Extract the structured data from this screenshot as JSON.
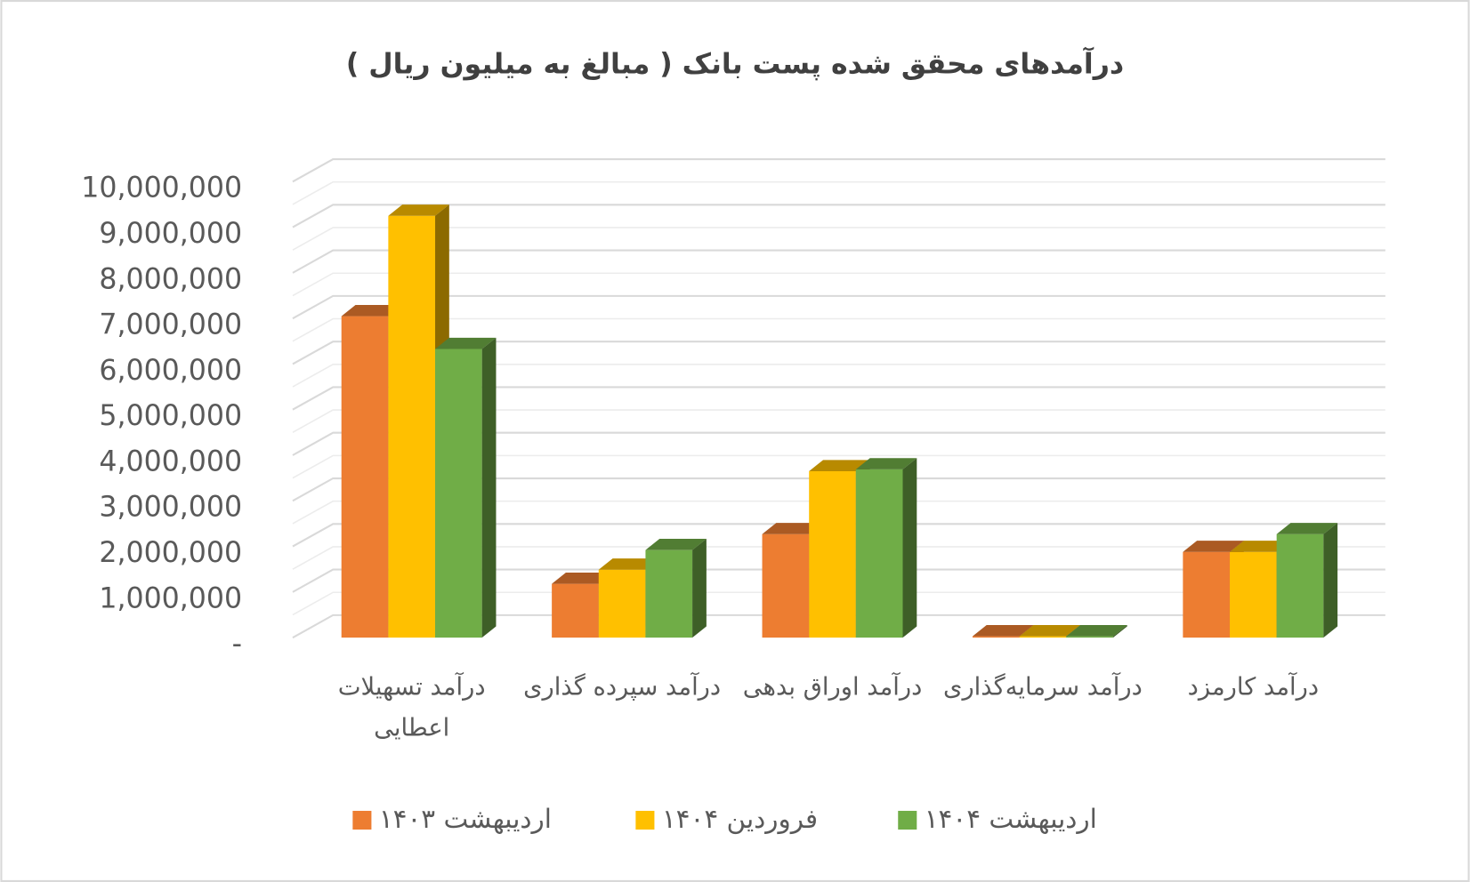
{
  "chart_data": {
    "type": "bar3d",
    "title": "درآمدهای محقق شده  پست بانک  ( مبالغ به میلیون ریال )",
    "categories": [
      "درآمد تسهیلات اعطایی",
      "درآمد سپرده گذاری",
      "درآمد اوراق بدهی",
      "درآمد سرمایه‌گذاری",
      "درآمد کارمزد"
    ],
    "series": [
      {
        "name": "اردیبهشت ۱۴۰۳",
        "color": "#ED7D31",
        "values": [
          7050000,
          1180000,
          2270000,
          30000,
          1880000
        ]
      },
      {
        "name": "فروردین ۱۴۰۴",
        "color": "#FFC000",
        "values": [
          9250000,
          1490000,
          3650000,
          30000,
          1880000
        ]
      },
      {
        "name": "اردیبهشت ۱۴۰۴",
        "color": "#70AD47",
        "values": [
          6330000,
          1920000,
          3690000,
          30000,
          2270000
        ]
      }
    ],
    "ylim": [
      0,
      10000000
    ],
    "yticks": [
      {
        "value": 0,
        "label": "-"
      },
      {
        "value": 1000000,
        "label": "1,000,000"
      },
      {
        "value": 2000000,
        "label": "2,000,000"
      },
      {
        "value": 3000000,
        "label": "3,000,000"
      },
      {
        "value": 4000000,
        "label": "4,000,000"
      },
      {
        "value": 5000000,
        "label": "5,000,000"
      },
      {
        "value": 6000000,
        "label": "6,000,000"
      },
      {
        "value": 7000000,
        "label": "7,000,000"
      },
      {
        "value": 8000000,
        "label": "8,000,000"
      },
      {
        "value": 9000000,
        "label": "9,000,000"
      },
      {
        "value": 10000000,
        "label": "10,000,000"
      }
    ],
    "grid": true,
    "legend": "bottom"
  }
}
